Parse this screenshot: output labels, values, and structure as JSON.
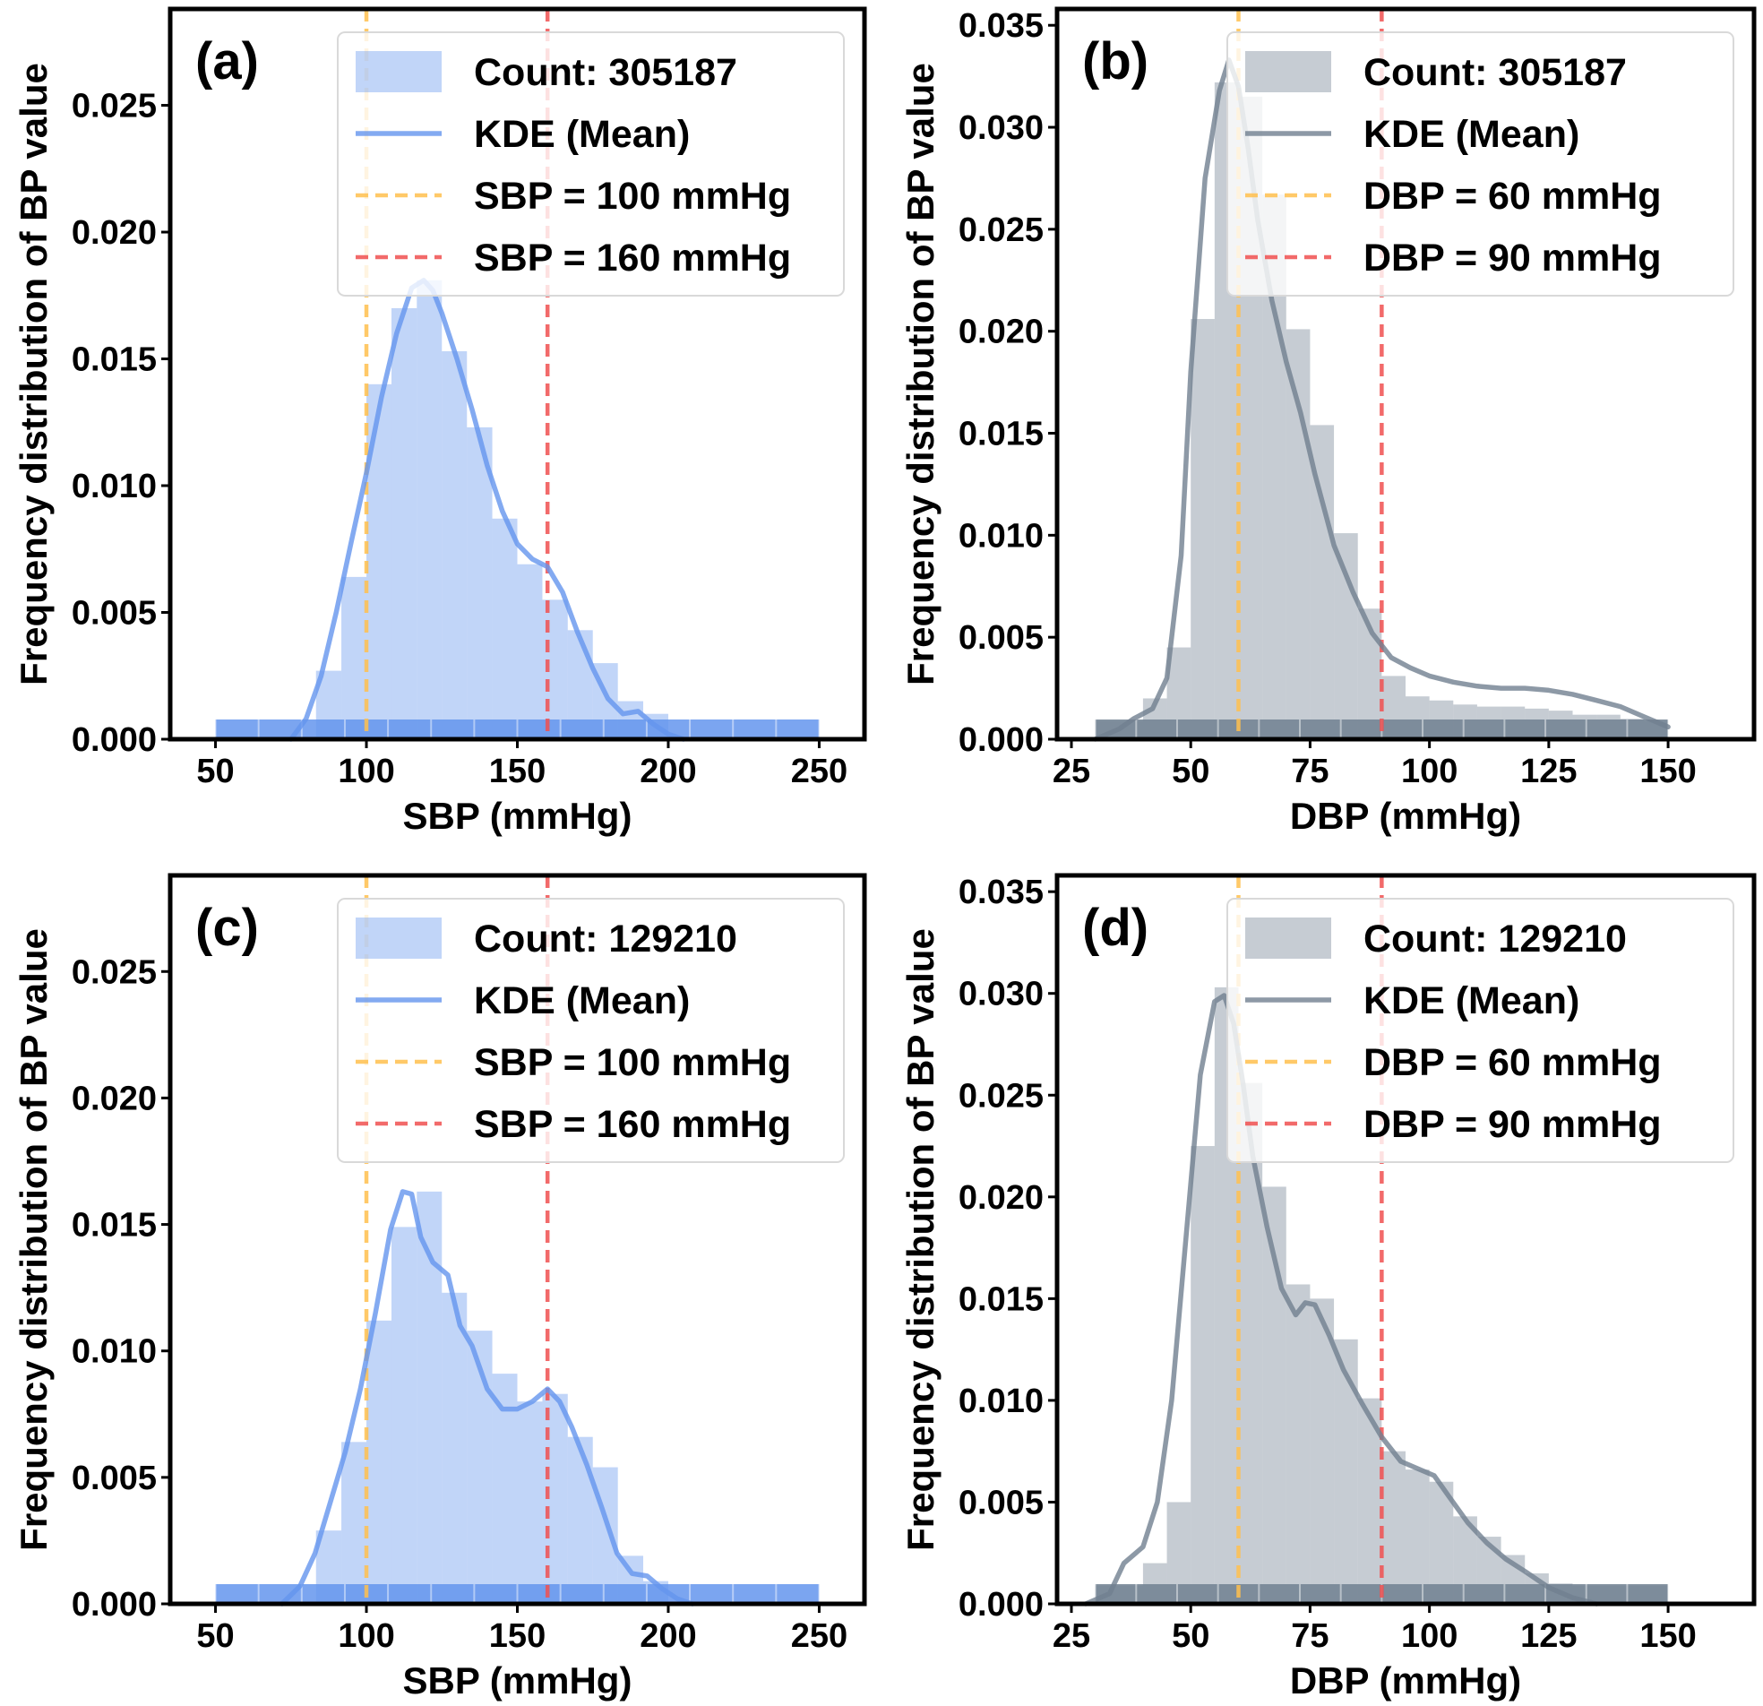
{
  "figure": {
    "background": "#ffffff"
  },
  "colors": {
    "sbp_fill": "#6495ED",
    "dbp_fill": "#708090",
    "low_threshold_line": "#FFC04D",
    "high_threshold_line": "#F05050",
    "axes": "#000000"
  },
  "chart_data": [
    {
      "panel_label": "(a)",
      "type": "bar",
      "overlay": "kde-line",
      "xlabel": "SBP (mmHg)",
      "ylabel": "Frequency distribution of BP value",
      "xlim": [
        35,
        265
      ],
      "ylim": [
        0,
        0.0288
      ],
      "xticks": [
        50,
        100,
        150,
        200,
        250
      ],
      "yticks": [
        0.0,
        0.005,
        0.01,
        0.015,
        0.02,
        0.025
      ],
      "ytick_labels": [
        "0.000",
        "0.005",
        "0.010",
        "0.015",
        "0.020",
        "0.025"
      ],
      "grid": false,
      "legend_position": "top-right",
      "hist": {
        "name": "Count: 305187",
        "color": "#6495ED",
        "bin_edges": [
          50,
          58.3,
          66.7,
          75,
          83.3,
          91.7,
          100,
          108.3,
          116.7,
          125,
          133.3,
          141.7,
          150,
          158.3,
          166.7,
          175,
          183.3,
          191.7,
          200,
          208.3,
          216.7,
          225,
          233.3,
          241.7,
          250
        ],
        "values": [
          0.0,
          0.0,
          0.0,
          0.0,
          0.0027,
          0.0064,
          0.014,
          0.017,
          0.0181,
          0.0153,
          0.0123,
          0.0087,
          0.0069,
          0.0055,
          0.0043,
          0.003,
          0.0015,
          0.001,
          0.0,
          0.0,
          0.0,
          0.0,
          0.0,
          0.0
        ]
      },
      "kde": {
        "name": "KDE (Mean)",
        "color": "#6495ED",
        "x": [
          75,
          80,
          85,
          90,
          95,
          100,
          105,
          110,
          115,
          119,
          122,
          125,
          130,
          135,
          140,
          145,
          150,
          155,
          160,
          165,
          170,
          175,
          180,
          185,
          190,
          195,
          200,
          205
        ],
        "y": [
          0.0,
          0.0008,
          0.0025,
          0.005,
          0.0078,
          0.0105,
          0.0135,
          0.016,
          0.0178,
          0.0181,
          0.0177,
          0.0168,
          0.015,
          0.013,
          0.0108,
          0.009,
          0.0077,
          0.0071,
          0.0068,
          0.0058,
          0.0042,
          0.0028,
          0.0016,
          0.001,
          0.0011,
          0.0006,
          0.0002,
          0.0
        ]
      },
      "rug": {
        "from": 50,
        "to": 250
      },
      "thresholds": [
        {
          "name": "SBP = 100 mmHg",
          "x": 100,
          "color": "#FFC04D"
        },
        {
          "name": "SBP = 160 mmHg",
          "x": 160,
          "color": "#F05050"
        }
      ]
    },
    {
      "panel_label": "(b)",
      "type": "bar",
      "overlay": "kde-line",
      "xlabel": "DBP (mmHg)",
      "ylabel": "Frequency distribution of BP value",
      "xlim": [
        22,
        168
      ],
      "ylim": [
        0,
        0.0358
      ],
      "xticks": [
        25,
        50,
        75,
        100,
        125,
        150
      ],
      "yticks": [
        0.0,
        0.005,
        0.01,
        0.015,
        0.02,
        0.025,
        0.03,
        0.035
      ],
      "ytick_labels": [
        "0.000",
        "0.005",
        "0.010",
        "0.015",
        "0.020",
        "0.025",
        "0.030",
        "0.035"
      ],
      "grid": false,
      "legend_position": "top-right",
      "hist": {
        "name": "Count: 305187",
        "color": "#708090",
        "bin_edges": [
          30,
          35,
          40,
          45,
          50,
          55,
          60,
          65,
          70,
          75,
          80,
          85,
          90,
          95,
          100,
          105,
          110,
          115,
          120,
          125,
          130,
          135,
          140,
          145,
          150
        ],
        "values": [
          0.0009,
          0.0009,
          0.002,
          0.0045,
          0.0206,
          0.0322,
          0.0315,
          0.0267,
          0.0201,
          0.0154,
          0.0101,
          0.0064,
          0.0031,
          0.0021,
          0.0019,
          0.0017,
          0.0016,
          0.0016,
          0.0015,
          0.0014,
          0.0012,
          0.0012,
          0.001,
          0.0009
        ]
      },
      "kde": {
        "name": "KDE (Mean)",
        "color": "#708090",
        "x": [
          30,
          35,
          38,
          42,
          45,
          48,
          50,
          53,
          56,
          58,
          60,
          62,
          64,
          67,
          70,
          73,
          76,
          80,
          84,
          88,
          92,
          96,
          100,
          105,
          110,
          115,
          120,
          125,
          130,
          135,
          140,
          145,
          150
        ],
        "y": [
          0.0,
          0.0005,
          0.001,
          0.0015,
          0.003,
          0.009,
          0.018,
          0.0275,
          0.0318,
          0.0333,
          0.032,
          0.029,
          0.0255,
          0.0215,
          0.0185,
          0.016,
          0.013,
          0.0095,
          0.0072,
          0.0052,
          0.004,
          0.0035,
          0.0031,
          0.0028,
          0.0026,
          0.0025,
          0.0025,
          0.0024,
          0.0022,
          0.0019,
          0.0016,
          0.0011,
          0.0006
        ]
      },
      "rug": {
        "from": 30,
        "to": 150
      },
      "thresholds": [
        {
          "name": "DBP = 60 mmHg",
          "x": 60,
          "color": "#FFC04D"
        },
        {
          "name": "DBP = 90 mmHg",
          "x": 90,
          "color": "#F05050"
        }
      ]
    },
    {
      "panel_label": "(c)",
      "type": "bar",
      "overlay": "kde-line",
      "xlabel": "SBP (mmHg)",
      "ylabel": "Frequency distribution of BP value",
      "xlim": [
        35,
        265
      ],
      "ylim": [
        0,
        0.0288
      ],
      "xticks": [
        50,
        100,
        150,
        200,
        250
      ],
      "yticks": [
        0.0,
        0.005,
        0.01,
        0.015,
        0.02,
        0.025
      ],
      "ytick_labels": [
        "0.000",
        "0.005",
        "0.010",
        "0.015",
        "0.020",
        "0.025"
      ],
      "grid": false,
      "legend_position": "top-right",
      "hist": {
        "name": "Count: 129210",
        "color": "#6495ED",
        "bin_edges": [
          50,
          58.3,
          66.7,
          75,
          83.3,
          91.7,
          100,
          108.3,
          116.7,
          125,
          133.3,
          141.7,
          150,
          158.3,
          166.7,
          175,
          183.3,
          191.7,
          200,
          208.3,
          216.7,
          225,
          233.3,
          241.7,
          250
        ],
        "values": [
          0.0,
          0.0,
          0.0,
          0.0,
          0.0029,
          0.0064,
          0.0112,
          0.0149,
          0.0163,
          0.0123,
          0.0108,
          0.0091,
          0.008,
          0.0083,
          0.0066,
          0.0054,
          0.0019,
          0.0009,
          0.0,
          0.0,
          0.0,
          0.0,
          0.0,
          0.0
        ]
      },
      "kde": {
        "name": "KDE (Mean)",
        "color": "#6495ED",
        "x": [
          72,
          78,
          83,
          88,
          93,
          98,
          103,
          108,
          112,
          115,
          118,
          122,
          127,
          131,
          135,
          140,
          145,
          150,
          155,
          160,
          164,
          168,
          173,
          178,
          183,
          188,
          193,
          198,
          203,
          208
        ],
        "y": [
          0.0,
          0.0007,
          0.002,
          0.004,
          0.006,
          0.0085,
          0.0115,
          0.0148,
          0.0163,
          0.0162,
          0.0145,
          0.0135,
          0.013,
          0.011,
          0.0102,
          0.0085,
          0.0077,
          0.0077,
          0.008,
          0.0085,
          0.008,
          0.007,
          0.0055,
          0.0038,
          0.002,
          0.0012,
          0.0011,
          0.0006,
          0.0002,
          0.0
        ]
      },
      "rug": {
        "from": 50,
        "to": 250
      },
      "thresholds": [
        {
          "name": "SBP = 100 mmHg",
          "x": 100,
          "color": "#FFC04D"
        },
        {
          "name": "SBP = 160 mmHg",
          "x": 160,
          "color": "#F05050"
        }
      ]
    },
    {
      "panel_label": "(d)",
      "type": "bar",
      "overlay": "kde-line",
      "xlabel": "DBP (mmHg)",
      "ylabel": "Frequency distribution of BP value",
      "xlim": [
        22,
        168
      ],
      "ylim": [
        0,
        0.0358
      ],
      "xticks": [
        25,
        50,
        75,
        100,
        125,
        150
      ],
      "yticks": [
        0.0,
        0.005,
        0.01,
        0.015,
        0.02,
        0.025,
        0.03,
        0.035
      ],
      "ytick_labels": [
        "0.000",
        "0.005",
        "0.010",
        "0.015",
        "0.020",
        "0.025",
        "0.030",
        "0.035"
      ],
      "grid": false,
      "legend_position": "top-right",
      "hist": {
        "name": "Count: 129210",
        "color": "#708090",
        "bin_edges": [
          30,
          35,
          40,
          45,
          50,
          55,
          60,
          65,
          70,
          75,
          80,
          85,
          90,
          95,
          100,
          105,
          110,
          115,
          120,
          125,
          130,
          135,
          140,
          145,
          150
        ],
        "values": [
          0.0009,
          0.0009,
          0.002,
          0.005,
          0.0225,
          0.0303,
          0.0256,
          0.0205,
          0.0157,
          0.015,
          0.013,
          0.0101,
          0.0075,
          0.0066,
          0.006,
          0.0043,
          0.0033,
          0.0024,
          0.0015,
          0.001,
          0.0009,
          0.0009,
          0.0009,
          0.0009
        ]
      },
      "kde": {
        "name": "KDE (Mean)",
        "color": "#708090",
        "x": [
          28,
          33,
          36,
          40,
          43,
          46,
          49,
          52,
          55,
          57,
          59,
          61,
          63,
          66,
          69,
          72,
          74,
          76,
          79,
          82,
          86,
          90,
          94,
          98,
          101,
          104,
          108,
          112,
          116,
          120,
          125,
          130,
          135
        ],
        "y": [
          0.0,
          0.0005,
          0.002,
          0.0028,
          0.005,
          0.01,
          0.018,
          0.026,
          0.0296,
          0.0299,
          0.0285,
          0.0255,
          0.022,
          0.0185,
          0.0155,
          0.0142,
          0.0148,
          0.0147,
          0.0132,
          0.0115,
          0.0098,
          0.0082,
          0.007,
          0.0066,
          0.0063,
          0.0053,
          0.004,
          0.003,
          0.0022,
          0.0016,
          0.0008,
          0.0003,
          0.0
        ]
      },
      "rug": {
        "from": 30,
        "to": 150
      },
      "thresholds": [
        {
          "name": "DBP = 60 mmHg",
          "x": 60,
          "color": "#FFC04D"
        },
        {
          "name": "DBP = 90 mmHg",
          "x": 90,
          "color": "#F05050"
        }
      ]
    }
  ]
}
